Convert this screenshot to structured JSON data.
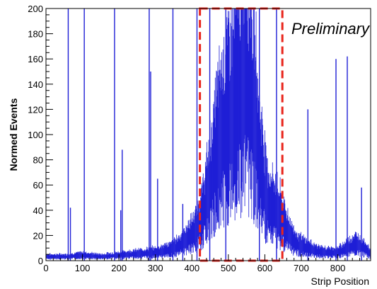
{
  "chart_data": {
    "type": "histogram",
    "title": "",
    "xlabel": "Strip Position",
    "ylabel": "Normed Events",
    "xlim": [
      0,
      890
    ],
    "ylim": [
      0,
      200
    ],
    "xticks": [
      0,
      100,
      200,
      300,
      400,
      500,
      600,
      700,
      800
    ],
    "yticks": [
      0,
      20,
      40,
      60,
      80,
      100,
      120,
      140,
      160,
      180,
      200
    ],
    "grid": false,
    "annotation": "Preliminary",
    "highlight_region": {
      "x": [
        422,
        648
      ],
      "y": [
        0,
        200
      ],
      "color": "#e8251c",
      "style": "dashed"
    },
    "series_color": "#1f1fd6",
    "spikes": [
      {
        "x": 61,
        "y": 200
      },
      {
        "x": 67,
        "y": 42
      },
      {
        "x": 105,
        "y": 200
      },
      {
        "x": 188,
        "y": 200
      },
      {
        "x": 205,
        "y": 40
      },
      {
        "x": 209,
        "y": 88
      },
      {
        "x": 283,
        "y": 200
      },
      {
        "x": 287,
        "y": 150
      },
      {
        "x": 306,
        "y": 65
      },
      {
        "x": 348,
        "y": 200
      },
      {
        "x": 375,
        "y": 45
      },
      {
        "x": 414,
        "y": 200
      },
      {
        "x": 449,
        "y": 200
      },
      {
        "x": 493,
        "y": 200
      },
      {
        "x": 585,
        "y": 200
      },
      {
        "x": 632,
        "y": 200
      },
      {
        "x": 718,
        "y": 120
      },
      {
        "x": 795,
        "y": 160
      },
      {
        "x": 826,
        "y": 162
      },
      {
        "x": 865,
        "y": 58
      }
    ],
    "envelope": [
      {
        "x": 0,
        "y": 3
      },
      {
        "x": 60,
        "y": 3
      },
      {
        "x": 100,
        "y": 4
      },
      {
        "x": 150,
        "y": 3
      },
      {
        "x": 200,
        "y": 4
      },
      {
        "x": 250,
        "y": 5
      },
      {
        "x": 300,
        "y": 6
      },
      {
        "x": 340,
        "y": 8
      },
      {
        "x": 370,
        "y": 12
      },
      {
        "x": 395,
        "y": 18
      },
      {
        "x": 410,
        "y": 22
      },
      {
        "x": 425,
        "y": 30
      },
      {
        "x": 440,
        "y": 45
      },
      {
        "x": 455,
        "y": 62
      },
      {
        "x": 470,
        "y": 82
      },
      {
        "x": 485,
        "y": 95
      },
      {
        "x": 500,
        "y": 105
      },
      {
        "x": 515,
        "y": 115
      },
      {
        "x": 530,
        "y": 125
      },
      {
        "x": 545,
        "y": 135
      },
      {
        "x": 555,
        "y": 130
      },
      {
        "x": 565,
        "y": 120
      },
      {
        "x": 575,
        "y": 100
      },
      {
        "x": 585,
        "y": 75
      },
      {
        "x": 598,
        "y": 55
      },
      {
        "x": 612,
        "y": 40
      },
      {
        "x": 630,
        "y": 38
      },
      {
        "x": 650,
        "y": 28
      },
      {
        "x": 670,
        "y": 18
      },
      {
        "x": 690,
        "y": 12
      },
      {
        "x": 710,
        "y": 10
      },
      {
        "x": 730,
        "y": 8
      },
      {
        "x": 760,
        "y": 6
      },
      {
        "x": 800,
        "y": 6
      },
      {
        "x": 830,
        "y": 10
      },
      {
        "x": 850,
        "y": 12
      },
      {
        "x": 870,
        "y": 10
      },
      {
        "x": 890,
        "y": 5
      }
    ]
  }
}
